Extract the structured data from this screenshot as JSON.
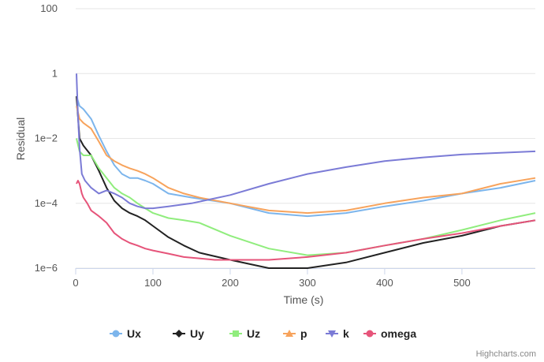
{
  "chart_data": {
    "type": "line",
    "xlabel": "Time (s)",
    "ylabel": "Residual",
    "y_scale": "log",
    "xlim": [
      0,
      595
    ],
    "ylim": [
      1e-06,
      100
    ],
    "x_ticks": [
      0,
      100,
      200,
      300,
      400,
      500
    ],
    "x_tick_labels": [
      "0",
      "100",
      "200",
      "300",
      "400",
      "500"
    ],
    "y_ticks": [
      1e-06,
      0.0001,
      0.01,
      1,
      100
    ],
    "y_tick_labels": [
      "1e−6",
      "1e−4",
      "1e−2",
      "1",
      "100"
    ],
    "grid": "horizontal",
    "legend_position": "bottom-center",
    "series": [
      {
        "name": "Ux",
        "color": "#7cb5ec",
        "marker": "circle",
        "x": [
          1,
          5,
          10,
          20,
          30,
          40,
          50,
          60,
          70,
          80,
          90,
          100,
          120,
          150,
          200,
          250,
          300,
          350,
          400,
          450,
          500,
          550,
          595
        ],
        "y": [
          0.2,
          0.1,
          0.08,
          0.04,
          0.012,
          0.004,
          0.0015,
          0.0008,
          0.0006,
          0.0006,
          0.0005,
          0.0004,
          0.0002,
          0.00015,
          0.0001,
          5e-05,
          4e-05,
          5e-05,
          8e-05,
          0.00012,
          0.0002,
          0.0003,
          0.0005
        ]
      },
      {
        "name": "Uy",
        "color": "#222222",
        "marker": "diamond",
        "x": [
          1,
          5,
          10,
          20,
          30,
          40,
          50,
          60,
          70,
          80,
          90,
          100,
          120,
          140,
          160,
          200,
          250,
          300,
          350,
          400,
          450,
          500,
          550,
          595
        ],
        "y": [
          0.2,
          0.01,
          0.006,
          0.003,
          0.001,
          0.0003,
          0.00012,
          7e-05,
          5e-05,
          4e-05,
          3e-05,
          2e-05,
          9e-06,
          5e-06,
          3e-06,
          1.8e-06,
          1e-06,
          1e-06,
          1.5e-06,
          3e-06,
          6e-06,
          1e-05,
          2e-05,
          3e-05
        ]
      },
      {
        "name": "Uz",
        "color": "#90ed7d",
        "marker": "square",
        "x": [
          1,
          5,
          10,
          20,
          30,
          40,
          50,
          60,
          70,
          80,
          90,
          100,
          120,
          140,
          160,
          200,
          250,
          300,
          350,
          400,
          450,
          500,
          550,
          595
        ],
        "y": [
          0.01,
          0.004,
          0.003,
          0.003,
          0.0012,
          0.0006,
          0.0003,
          0.0002,
          0.00015,
          0.0001,
          7e-05,
          5e-05,
          3.5e-05,
          3e-05,
          2.5e-05,
          1e-05,
          4e-06,
          2.5e-06,
          3e-06,
          5e-06,
          8e-06,
          1.5e-05,
          3e-05,
          5e-05
        ]
      },
      {
        "name": "p",
        "color": "#f7a35c",
        "marker": "triangle",
        "x": [
          1,
          5,
          10,
          20,
          30,
          40,
          50,
          60,
          70,
          80,
          90,
          100,
          120,
          140,
          160,
          200,
          250,
          300,
          350,
          400,
          450,
          500,
          550,
          595
        ],
        "y": [
          0.1,
          0.04,
          0.03,
          0.02,
          0.008,
          0.003,
          0.002,
          0.0015,
          0.0012,
          0.001,
          0.0008,
          0.0006,
          0.0003,
          0.0002,
          0.00015,
          0.0001,
          6e-05,
          5e-05,
          6e-05,
          0.0001,
          0.00015,
          0.0002,
          0.0004,
          0.0006
        ]
      },
      {
        "name": "k",
        "color": "#7b7bd6",
        "marker": "triangle-down",
        "x": [
          1,
          3,
          5,
          8,
          12,
          20,
          30,
          40,
          50,
          60,
          70,
          80,
          90,
          100,
          120,
          150,
          200,
          250,
          300,
          350,
          400,
          450,
          500,
          550,
          595
        ],
        "y": [
          1,
          0.05,
          0.005,
          0.0008,
          0.0005,
          0.0003,
          0.0002,
          0.00025,
          0.0002,
          0.00015,
          0.0001,
          8e-05,
          7e-05,
          7e-05,
          8e-05,
          0.0001,
          0.00018,
          0.0004,
          0.0008,
          0.0013,
          0.002,
          0.0026,
          0.0032,
          0.0036,
          0.004
        ]
      },
      {
        "name": "omega",
        "color": "#e6547a",
        "marker": "circle",
        "x": [
          1,
          3,
          5,
          8,
          10,
          15,
          20,
          30,
          40,
          50,
          60,
          70,
          80,
          90,
          100,
          120,
          140,
          160,
          180,
          200,
          250,
          300,
          350,
          400,
          450,
          500,
          550,
          595
        ],
        "y": [
          0.0004,
          0.0005,
          0.0004,
          0.0002,
          0.00015,
          0.0001,
          6e-05,
          4e-05,
          2.5e-05,
          1.2e-05,
          8e-06,
          6e-06,
          5e-06,
          4e-06,
          3.5e-06,
          2.8e-06,
          2.2e-06,
          2e-06,
          1.8e-06,
          1.8e-06,
          1.8e-06,
          2.2e-06,
          3e-06,
          5e-06,
          8e-06,
          1.2e-05,
          2e-05,
          3e-05
        ]
      }
    ]
  },
  "credit": "Highcharts.com"
}
